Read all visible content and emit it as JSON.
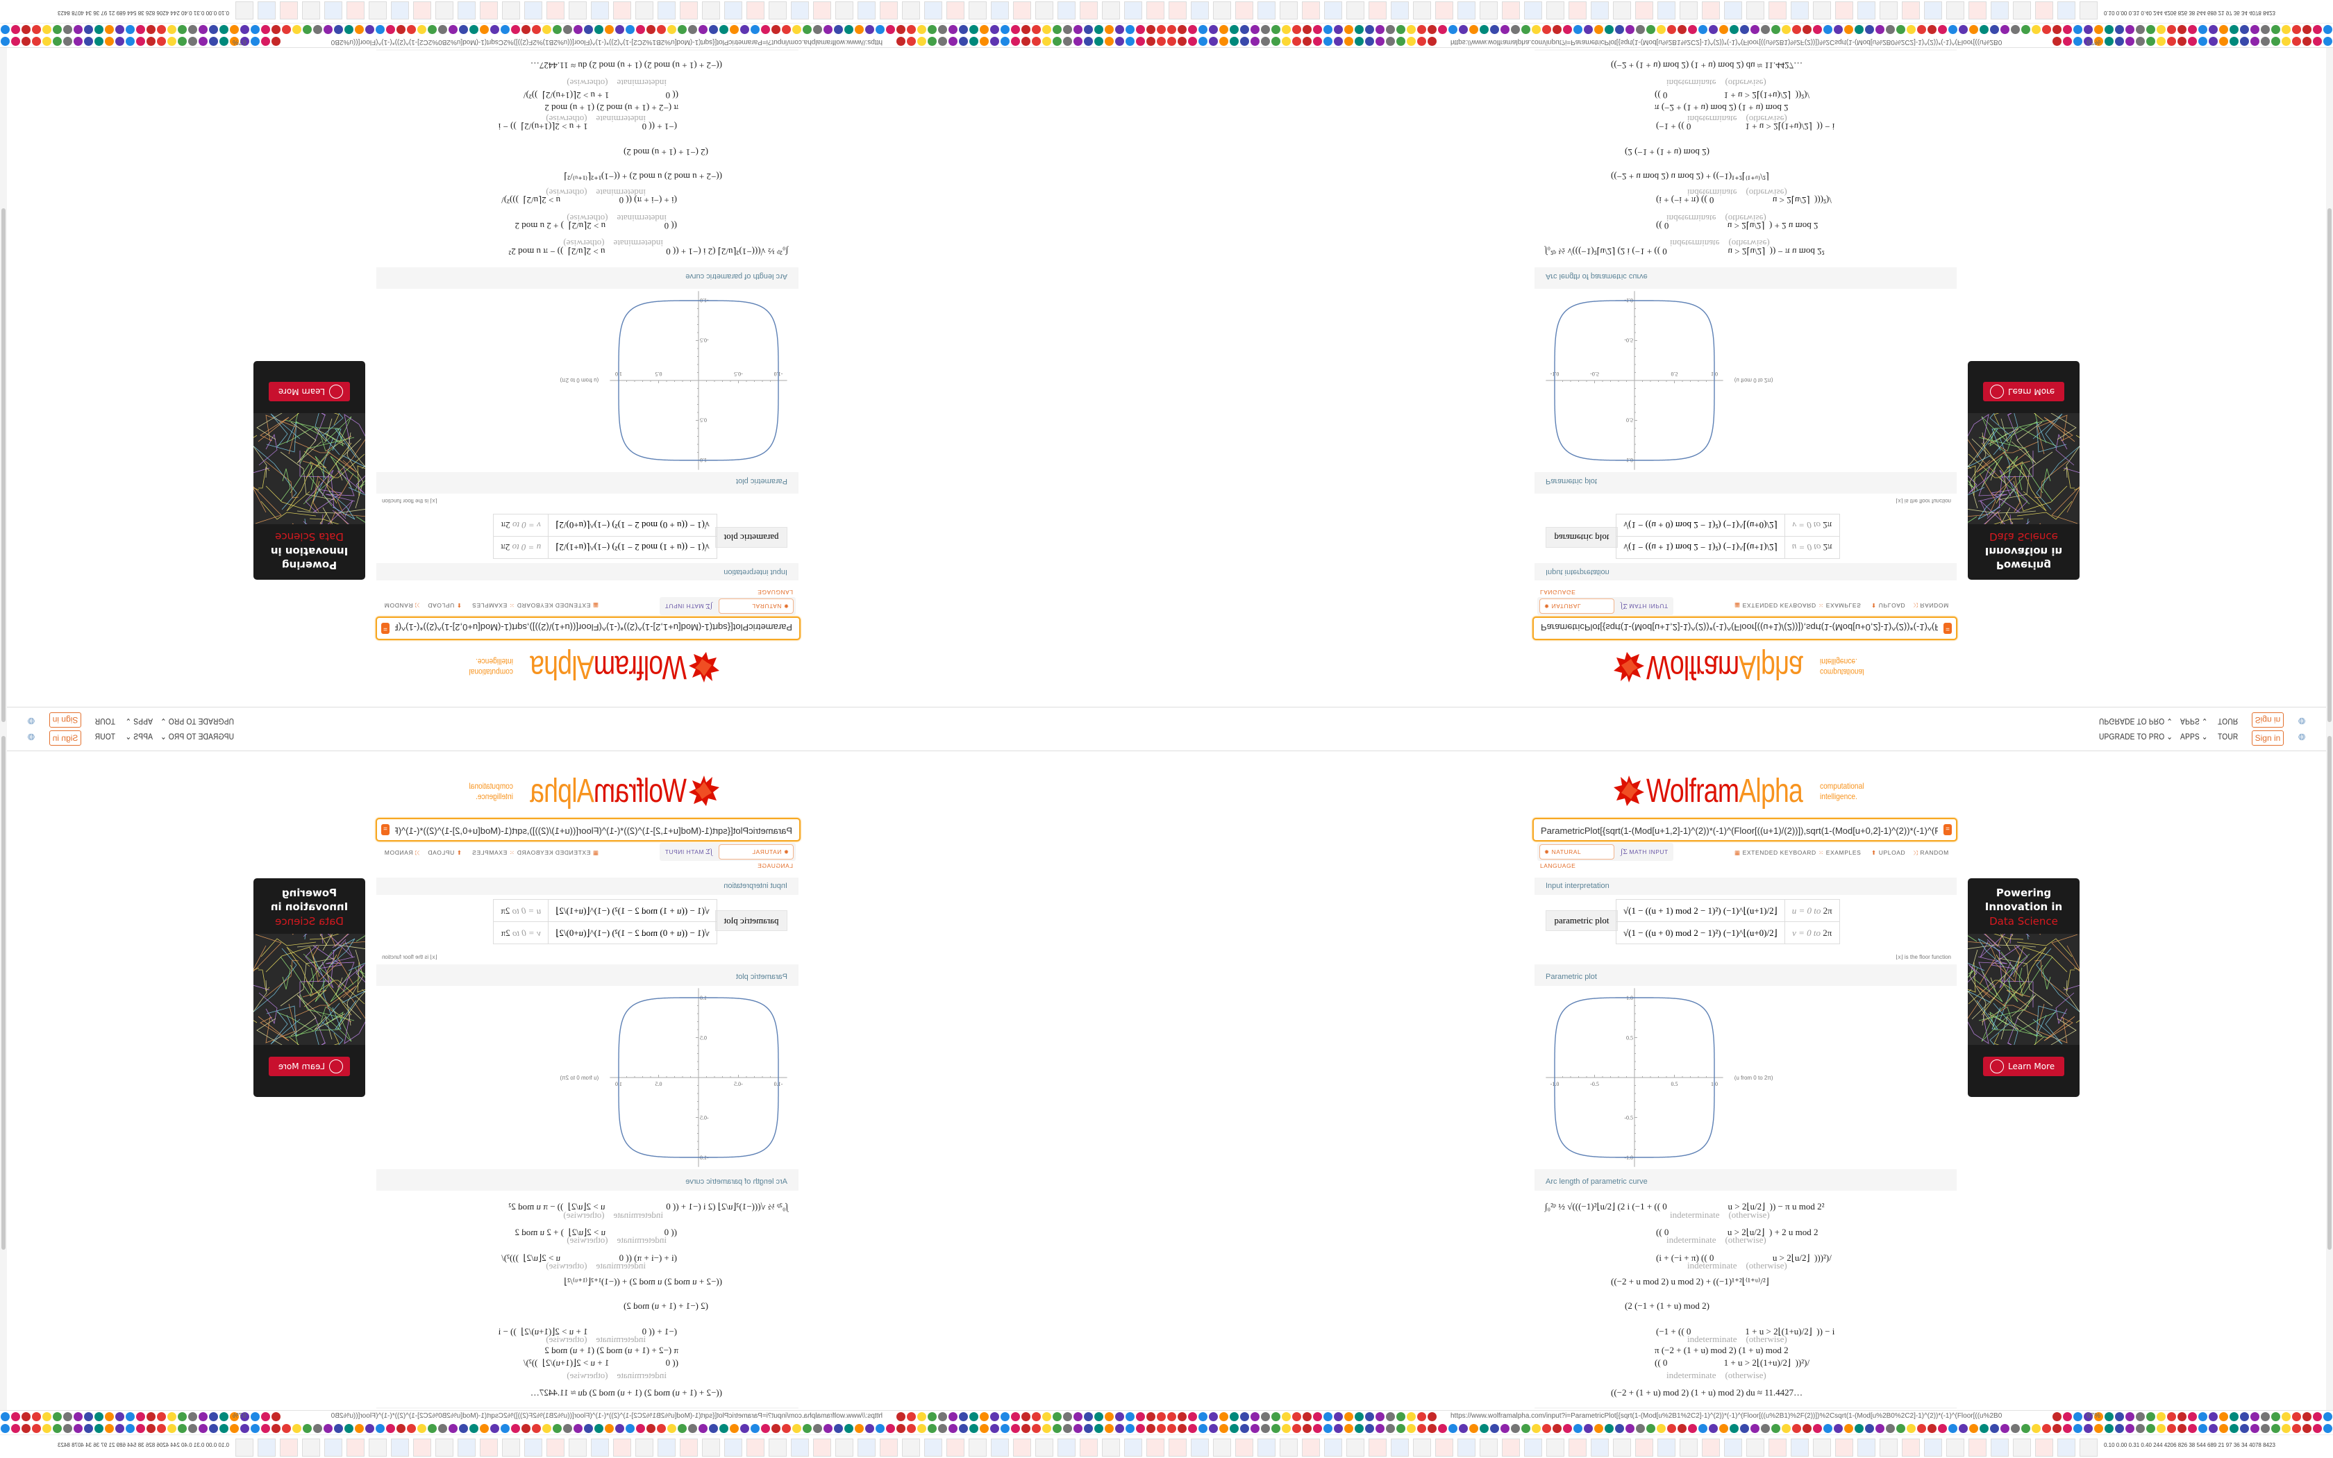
{
  "nav": {
    "upgrade": "UPGRADE TO PRO ⌄",
    "apps": "APPS ⌄",
    "tour": "TOUR",
    "sign_in": "Sign in",
    "globe_icon": "globe-icon"
  },
  "logo": {
    "wolfram": "Wolfram",
    "alpha": "Alpha",
    "tagline_1": "computational",
    "tagline_2": "intelligence."
  },
  "search": {
    "value": "ParametricPlot[{sqrt(1-(Mod[u+1,2]-1)^(2))*(-1)^(Floor[((u+1)/(2))]),sqrt(1-(Mod[u+0,2]-1)^(2))*(-1)^(Floor[((u+0)/(2))])},{u,0,2pi}]",
    "go_icon": "equals-icon"
  },
  "modes": {
    "natural": "NATURAL LANGUAGE",
    "math": "MATH INPUT"
  },
  "tools": {
    "keyboard": "EXTENDED KEYBOARD",
    "examples": "EXAMPLES",
    "upload": "UPLOAD",
    "random": "RANDOM"
  },
  "pods": {
    "input": {
      "title": "Input interpretation",
      "label": "parametric plot",
      "rows": [
        {
          "expr": "√(1 − ((u + 1) mod 2 − 1)²) (−1)^⌊(u+1)/2⌋",
          "var": "u = 0 to",
          "end": "2π"
        },
        {
          "expr": "√(1 − ((u + 0) mod 2 − 1)²) (−1)^⌊(u+0)/2⌋",
          "var": "v = 0 to",
          "end": "2π"
        }
      ],
      "note": "⌊x⌋ is the floor function"
    },
    "plot": {
      "title": "Parametric plot"
    },
    "arc": {
      "title": "Arc length of parametric curve",
      "lines": [
        "∫₀²ᵖ ½ √(((−1)²⌊u/2⌋ (2 i (−1 + (( 0                           u > 2⌊u/2⌋  )) − π u mod 2²",
        "indeterminate    (otherwise)",
        "(( 0                          u > 2⌊u/2⌋  ) + 2 u mod 2",
        "indeterminate    (otherwise)",
        "(i + (−i + π) (( 0                          u > 2⌊u/2⌋  )))²)/",
        "indeterminate    (otherwise)",
        "((−2 + u mod 2) u mod 2) + ((−1)¹⁺²⌊⁽¹⁺ᵘ⁾/²⌋",
        "(2 (−1 + (1 + u) mod 2)",
        "(−1 + (( 0                        1 + u > 2⌊(1+u)/2⌋  )) − i",
        "indeterminate    (otherwise)",
        "π (−2 + (1 + u) mod 2) (1 + u) mod 2",
        "(( 0                         1 + u > 2⌊(1+u)/2⌋  ))²)/",
        "indeterminate    (otherwise)",
        "((−2 + (1 + u) mod 2) (1 + u) mod 2) du ≈ 11.4427…"
      ]
    }
  },
  "chart_data": {
    "type": "line",
    "kind": "parametric",
    "x_function": "sqrt(1-(Mod[u+1,2]-1)^2)*(-1)^Floor[(u+1)/2]",
    "y_function": "sqrt(1-(Mod[u+0,2]-1)^2)*(-1)^Floor[(u+0)/2]",
    "parameter_range": [
      0,
      6.283185
    ],
    "xlim": [
      -1.1,
      1.1
    ],
    "ylim": [
      -1.0,
      1.0
    ],
    "x_ticks": [
      "-1.0",
      "-0.5",
      "0.5",
      "1.0"
    ],
    "y_ticks": [
      "1.0",
      "0.5",
      "-0.5",
      "-1.0"
    ],
    "annotation": "(u from 0 to 2π)",
    "line_color": "#5e81b5"
  },
  "ad": {
    "line1": "Powering",
    "line2": "Innovation in",
    "line3": "Data Science",
    "button": "Learn More"
  },
  "browser": {
    "url": "https://www.wolframalpha.com/input?i=ParametricPlot[{sqrt(1-(Mod[u%2B1%2C2]-1)^(2))*(-1)^(Floor[((u%2B1)%2F(2))])%2Csqrt(1-(Mod[u%2B0%2C2]-1)^(2))*(-1)^(Floor[((u%2B0",
    "zoom": "67%",
    "tray": "0.10 0.00 0.31 0.40 244 4206 826 38 544 689 21 97 36 34 4078 8423"
  },
  "colors": {
    "accent": "#f7931e",
    "brand_red": "#dd1100",
    "link_orange": "#e3702d",
    "pod_title": "#5b8397"
  }
}
